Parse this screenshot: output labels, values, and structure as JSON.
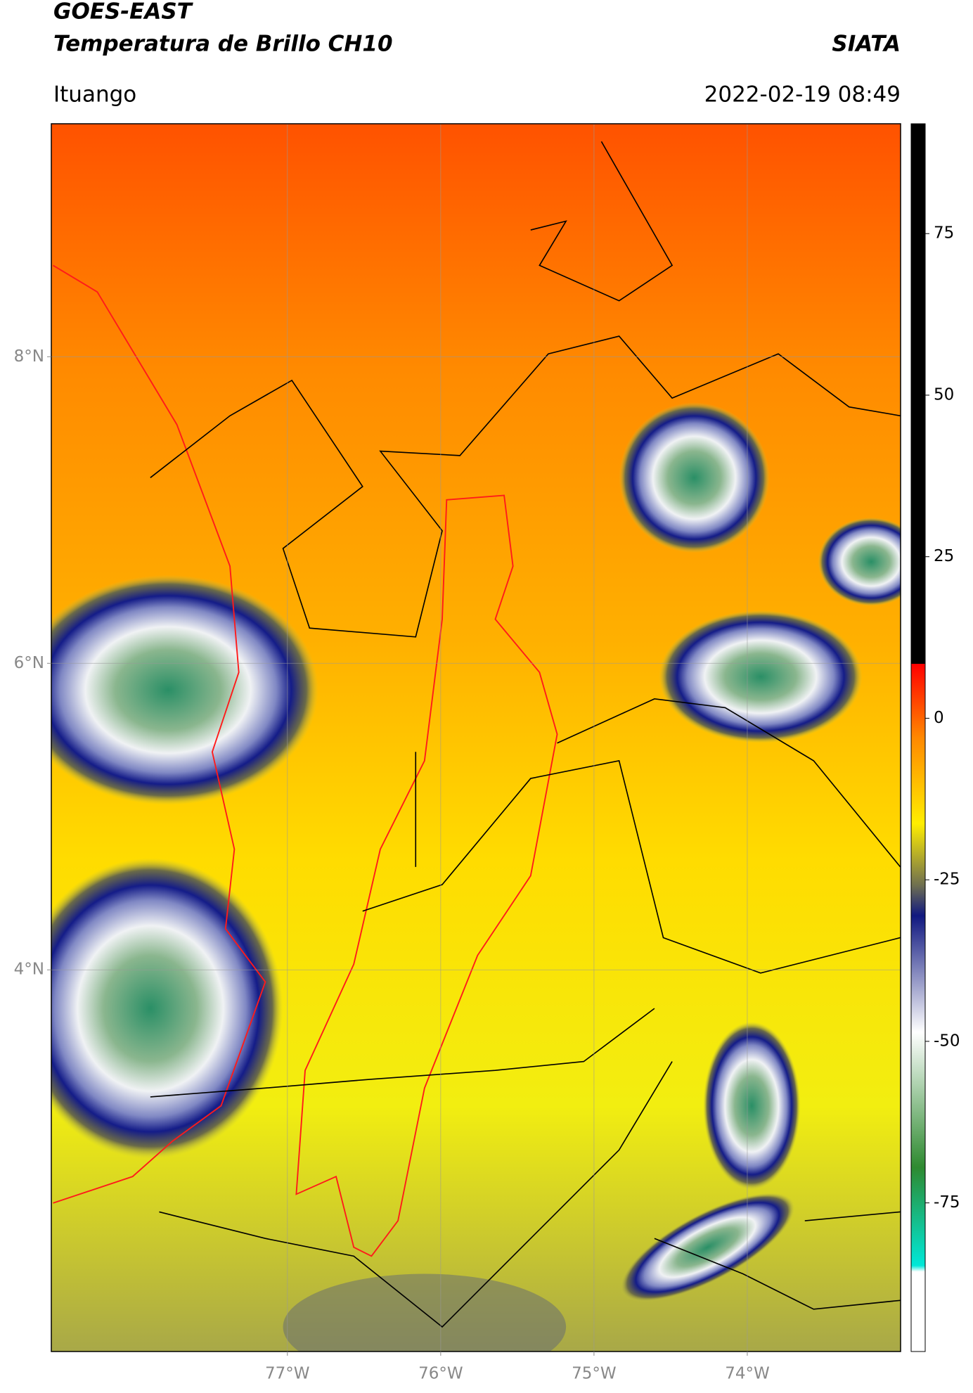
{
  "header": {
    "title": "GOES-EAST",
    "subtitle": "Temperatura de Brillo CH10",
    "source": "SIATA",
    "location": "Ituango",
    "datetime": "2022-02-19 08:49"
  },
  "map": {
    "lonlim": [
      -78.54,
      -73.0
    ],
    "latlim": [
      1.51,
      9.52
    ],
    "lonticks": [
      {
        "value": -77,
        "label": "77°W"
      },
      {
        "value": -76,
        "label": "76°W"
      },
      {
        "value": -75,
        "label": "75°W"
      },
      {
        "value": -74,
        "label": "74°W"
      }
    ],
    "latticks": [
      {
        "value": 8,
        "label": "8°N"
      },
      {
        "value": 6,
        "label": "6°N"
      },
      {
        "value": 4,
        "label": "4°N"
      }
    ],
    "grid": true
  },
  "colorbar": {
    "clim": [
      -98,
      92
    ],
    "ticks": [
      75,
      50,
      25,
      0,
      -25,
      -50,
      -75
    ]
  }
}
